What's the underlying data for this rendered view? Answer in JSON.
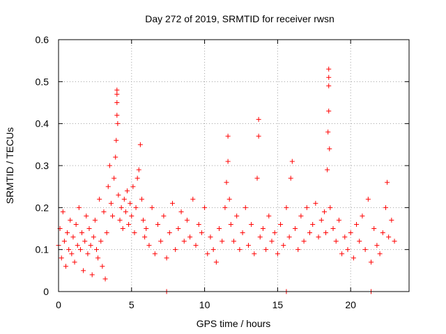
{
  "chart_data": {
    "type": "scatter",
    "title": "Day 272 of 2019, SRMTID for receiver rwsn",
    "xlabel": "GPS time / hours",
    "ylabel": "SRMTID / TECUs",
    "xlim": [
      0,
      24
    ],
    "ylim": [
      0,
      0.6
    ],
    "xticks": [
      0,
      5,
      10,
      15,
      20
    ],
    "xtick_labels": [
      "0",
      "5",
      "10",
      "15",
      "20"
    ],
    "yticks": [
      0,
      0.1,
      0.2,
      0.3,
      0.4,
      0.5,
      0.6
    ],
    "ytick_labels": [
      "0",
      "0.1",
      "0.2",
      "0.3",
      "0.4",
      "0.5",
      "0.6"
    ],
    "grid": true,
    "marker": "+",
    "series": [
      {
        "name": "SRMTID",
        "color": "#ff0000",
        "x": [
          0.0,
          0.1,
          0.2,
          0.3,
          0.4,
          0.5,
          0.6,
          0.7,
          0.8,
          0.9,
          1.0,
          1.1,
          1.2,
          1.3,
          1.4,
          1.5,
          1.6,
          1.7,
          1.8,
          1.9,
          2.0,
          2.1,
          2.2,
          2.3,
          2.4,
          2.5,
          2.6,
          2.7,
          2.8,
          2.9,
          3.0,
          3.1,
          3.2,
          3.3,
          3.4,
          3.5,
          3.6,
          3.7,
          3.8,
          3.9,
          3.95,
          4.0,
          4.0,
          4.0,
          4.0,
          4.05,
          4.1,
          4.2,
          4.3,
          4.4,
          4.5,
          4.6,
          4.7,
          4.8,
          4.9,
          5.0,
          5.1,
          5.2,
          5.3,
          5.4,
          5.5,
          5.6,
          5.7,
          5.8,
          5.9,
          6.0,
          6.2,
          6.4,
          6.6,
          6.8,
          7.0,
          7.2,
          7.4,
          7.6,
          7.8,
          8.0,
          8.2,
          8.4,
          8.6,
          8.8,
          9.0,
          9.2,
          9.4,
          9.6,
          9.8,
          10.0,
          10.2,
          10.4,
          10.6,
          10.8,
          11.0,
          11.2,
          11.4,
          11.5,
          11.6,
          11.6,
          11.7,
          11.8,
          12.0,
          12.2,
          12.4,
          12.6,
          12.8,
          13.0,
          13.2,
          13.4,
          13.6,
          13.7,
          13.7,
          13.8,
          14.0,
          14.2,
          14.4,
          14.6,
          14.8,
          15.0,
          15.2,
          15.4,
          15.6,
          15.8,
          15.9,
          16.0,
          16.2,
          16.4,
          16.6,
          16.8,
          17.0,
          17.2,
          17.4,
          17.6,
          17.8,
          18.0,
          18.2,
          18.3,
          18.4,
          18.45,
          18.5,
          18.5,
          18.5,
          18.5,
          18.55,
          18.6,
          18.8,
          19.0,
          19.2,
          19.4,
          19.6,
          19.8,
          20.0,
          20.2,
          20.4,
          20.6,
          20.8,
          21.0,
          21.2,
          21.4,
          21.6,
          21.8,
          22.0,
          22.2,
          22.4,
          22.5,
          22.6,
          22.8,
          23.0,
          7.4,
          15.6,
          21.4
        ],
        "y": [
          0.11,
          0.15,
          0.08,
          0.19,
          0.12,
          0.06,
          0.14,
          0.1,
          0.17,
          0.09,
          0.13,
          0.07,
          0.16,
          0.11,
          0.2,
          0.1,
          0.14,
          0.05,
          0.12,
          0.18,
          0.09,
          0.15,
          0.11,
          0.04,
          0.13,
          0.17,
          0.1,
          0.08,
          0.22,
          0.12,
          0.06,
          0.19,
          0.03,
          0.14,
          0.25,
          0.3,
          0.21,
          0.18,
          0.27,
          0.32,
          0.36,
          0.42,
          0.45,
          0.47,
          0.48,
          0.4,
          0.23,
          0.17,
          0.2,
          0.15,
          0.22,
          0.19,
          0.24,
          0.16,
          0.21,
          0.18,
          0.25,
          0.14,
          0.2,
          0.27,
          0.29,
          0.35,
          0.22,
          0.17,
          0.13,
          0.15,
          0.11,
          0.2,
          0.09,
          0.16,
          0.12,
          0.18,
          0.08,
          0.14,
          0.21,
          0.1,
          0.15,
          0.19,
          0.12,
          0.17,
          0.13,
          0.22,
          0.11,
          0.16,
          0.14,
          0.2,
          0.09,
          0.13,
          0.1,
          0.07,
          0.15,
          0.12,
          0.2,
          0.26,
          0.37,
          0.31,
          0.22,
          0.16,
          0.12,
          0.18,
          0.1,
          0.14,
          0.2,
          0.11,
          0.16,
          0.09,
          0.27,
          0.37,
          0.41,
          0.13,
          0.15,
          0.1,
          0.18,
          0.12,
          0.14,
          0.09,
          0.16,
          0.11,
          0.2,
          0.13,
          0.27,
          0.31,
          0.15,
          0.1,
          0.18,
          0.12,
          0.2,
          0.14,
          0.16,
          0.21,
          0.13,
          0.17,
          0.19,
          0.14,
          0.29,
          0.38,
          0.43,
          0.49,
          0.51,
          0.53,
          0.34,
          0.2,
          0.15,
          0.12,
          0.17,
          0.09,
          0.13,
          0.1,
          0.14,
          0.08,
          0.16,
          0.12,
          0.18,
          0.1,
          0.22,
          0.07,
          0.15,
          0.11,
          0.09,
          0.14,
          0.2,
          0.26,
          0.13,
          0.17,
          0.12,
          0.0,
          0.0,
          0.0
        ]
      }
    ]
  }
}
